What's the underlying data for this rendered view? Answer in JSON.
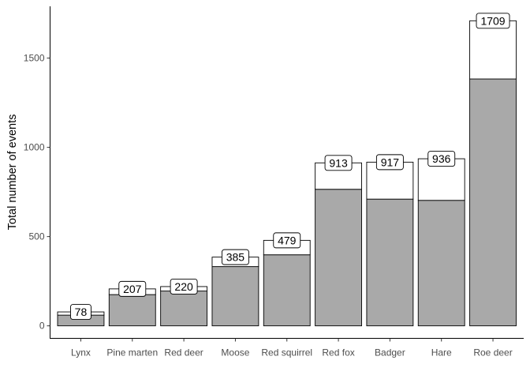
{
  "chart_data": {
    "type": "bar",
    "stacked": true,
    "title": "",
    "xlabel": "",
    "ylabel": "Total number of events",
    "ylim": [
      -70,
      1790
    ],
    "yticks": [
      0,
      500,
      1000,
      1500
    ],
    "grid": false,
    "legend": "none",
    "categories": [
      "Lynx",
      "Pine marten",
      "Red deer",
      "Moose",
      "Red squirrel",
      "Red fox",
      "Badger",
      "Hare",
      "Roe deer"
    ],
    "series": [
      {
        "color": "#a9a9a9",
        "values": [
          60,
          175,
          195,
          332,
          398,
          765,
          710,
          703,
          1383
        ]
      },
      {
        "color": "#ffffff",
        "values": [
          18,
          32,
          25,
          53,
          81,
          148,
          207,
          233,
          326
        ]
      }
    ],
    "totals": [
      78,
      207,
      220,
      385,
      479,
      913,
      917,
      936,
      1709
    ],
    "data_labels": [
      "78",
      "207",
      "220",
      "385",
      "479",
      "913",
      "917",
      "936",
      "1709"
    ]
  }
}
